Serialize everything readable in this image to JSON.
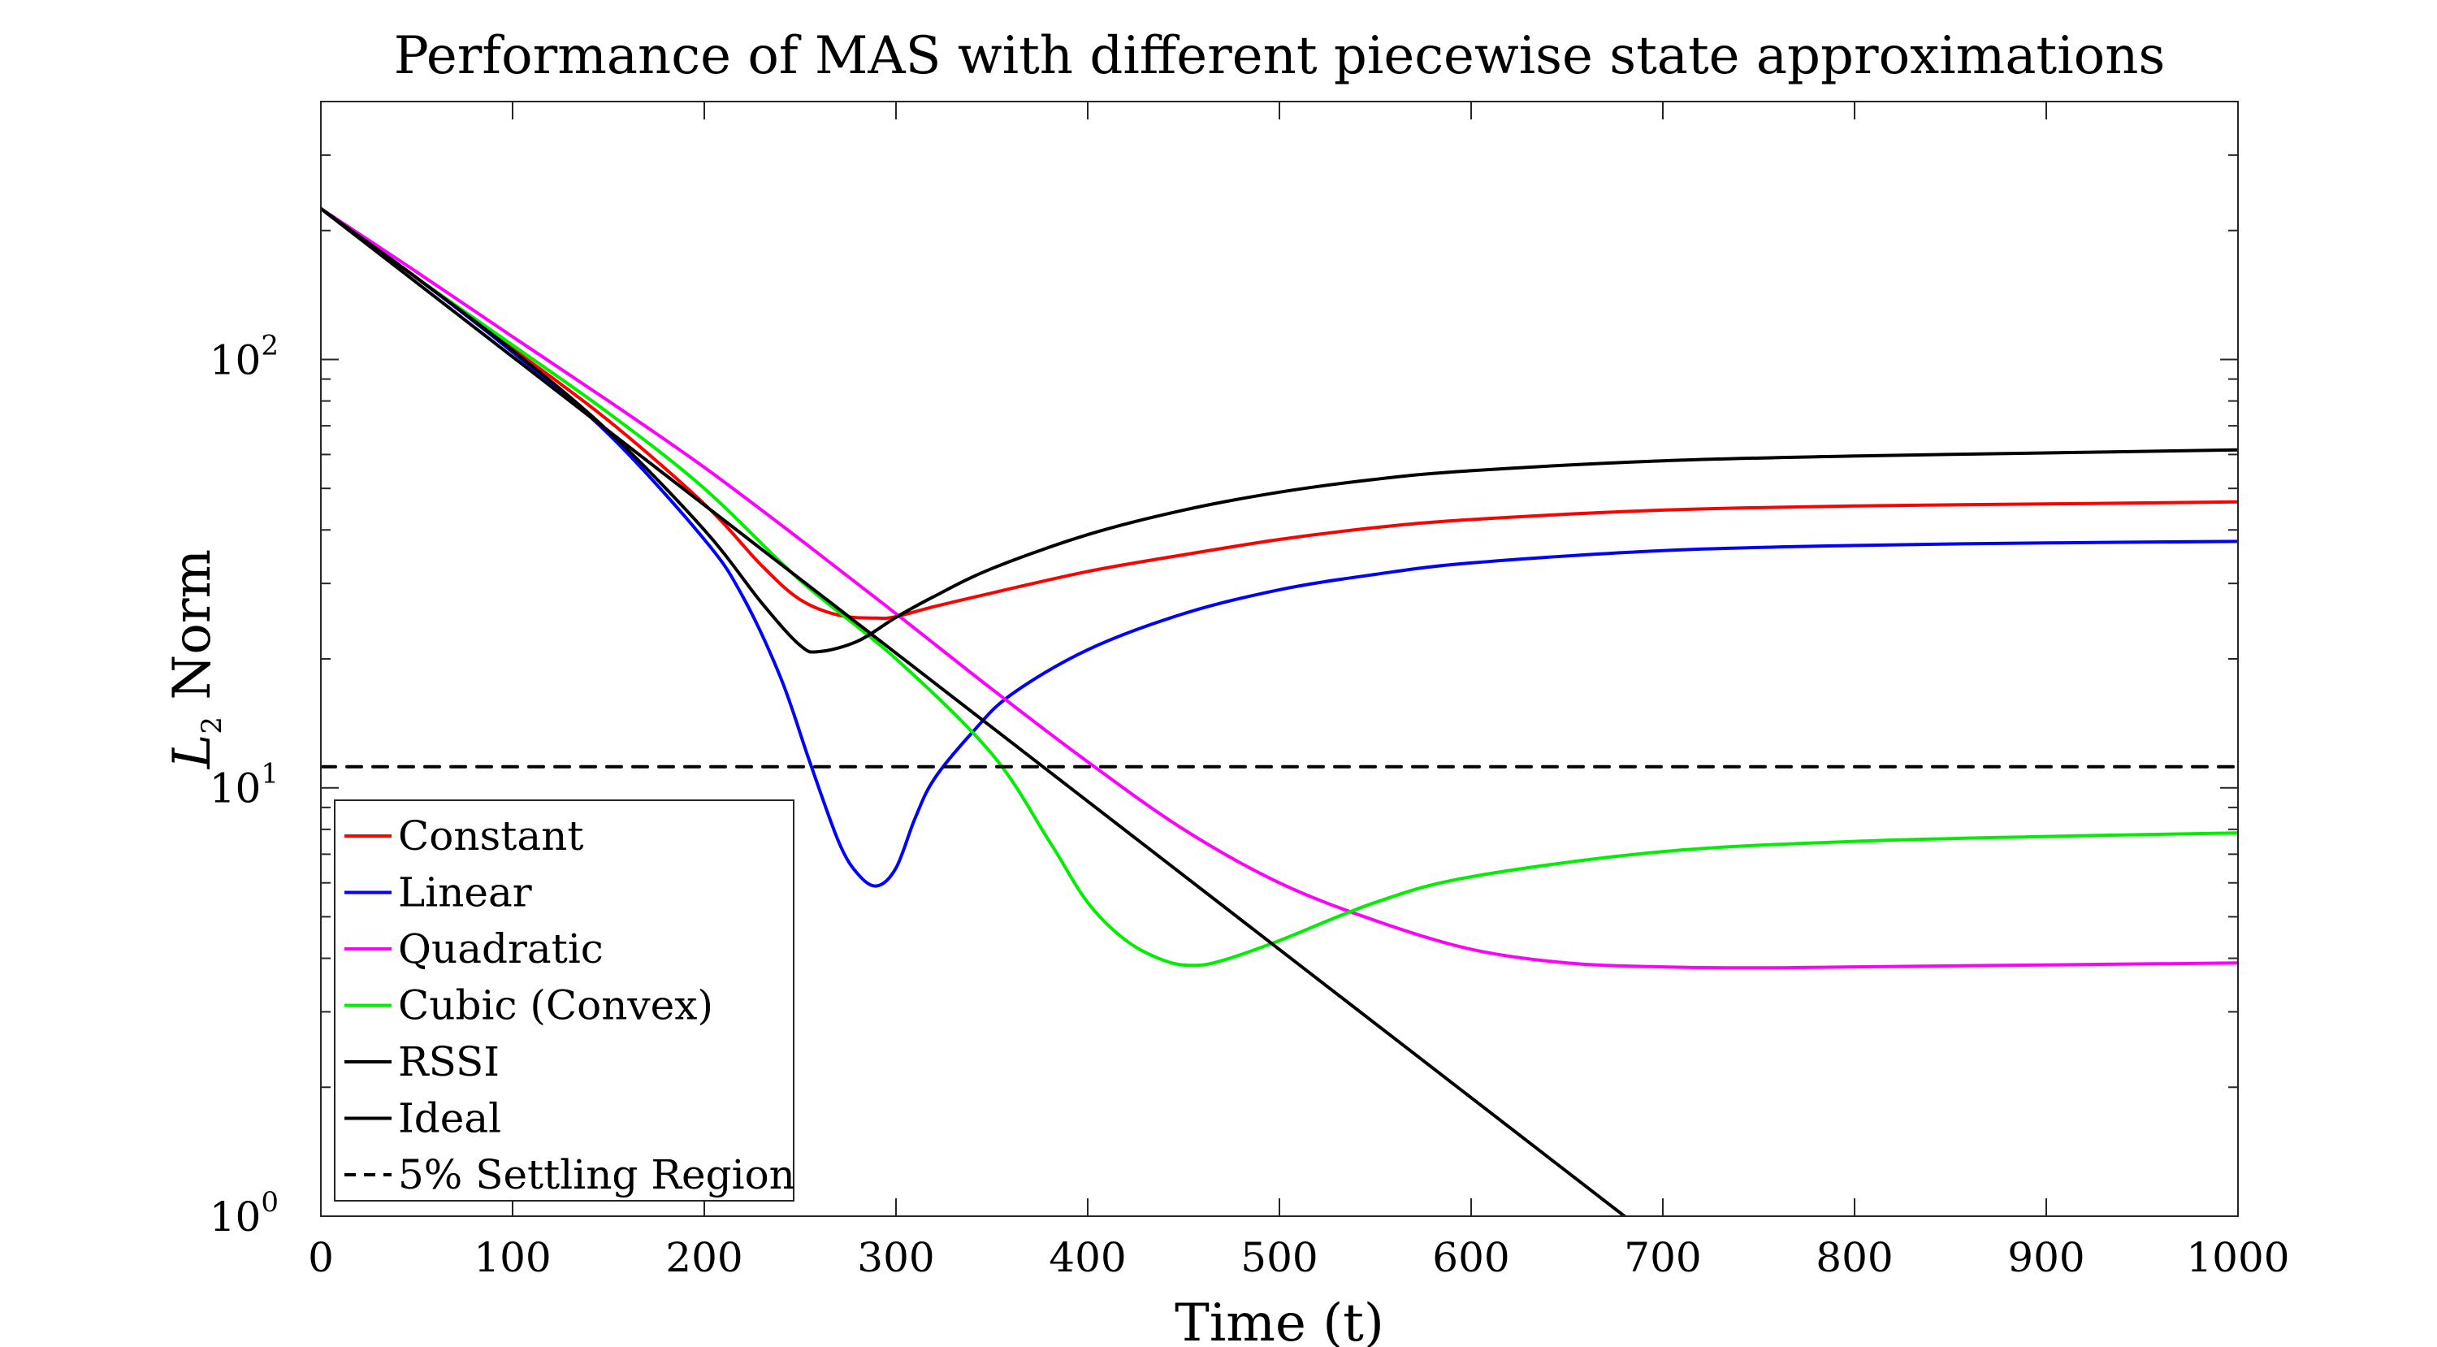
{
  "chart_data": {
    "type": "line",
    "title": "Performance of MAS with different piecewise state approximations",
    "xlabel": "Time (t)",
    "ylabel": "L",
    "ylabel_sub": "2",
    "ylabel_rest": " Norm",
    "xlim": [
      0,
      1000
    ],
    "ylim": [
      1,
      400
    ],
    "yscale": "log",
    "grid": false,
    "legend_position": "bottom-left",
    "x_ticks": [
      "0",
      "100",
      "200",
      "300",
      "400",
      "500",
      "600",
      "700",
      "800",
      "900",
      "1000"
    ],
    "y_ticks": [
      {
        "base": "10",
        "exp": "0"
      },
      {
        "base": "10",
        "exp": "1"
      },
      {
        "base": "10",
        "exp": "2"
      }
    ],
    "series": [
      {
        "name": "Constant",
        "color": "#ff0000",
        "style": "solid",
        "x": [
          0,
          50,
          100,
          150,
          200,
          230,
          250,
          270,
          290,
          300,
          320,
          350,
          400,
          450,
          500,
          550,
          600,
          700,
          800,
          900,
          1000
        ],
        "y": [
          225,
          155,
          106,
          72,
          46,
          33,
          27.5,
          25.3,
          24.9,
          25.1,
          26.5,
          28.5,
          32,
          35,
          38,
          40.5,
          42.3,
          44.5,
          45.5,
          46,
          46.5
        ]
      },
      {
        "name": "Linear",
        "color": "#0000ff",
        "style": "solid",
        "x": [
          0,
          50,
          100,
          150,
          200,
          220,
          240,
          255,
          270,
          280,
          290,
          300,
          310,
          320,
          340,
          360,
          400,
          450,
          500,
          550,
          600,
          700,
          800,
          900,
          1000
        ],
        "y": [
          225,
          155,
          104,
          67,
          38,
          28,
          18,
          11.5,
          7.5,
          6.3,
          5.9,
          6.5,
          8.5,
          10.5,
          13.5,
          16.5,
          21,
          25.5,
          29,
          31.5,
          33.5,
          35.8,
          36.8,
          37.3,
          37.6
        ]
      },
      {
        "name": "Quadratic",
        "color": "#ff00ff",
        "style": "solid",
        "x": [
          0,
          50,
          100,
          150,
          200,
          250,
          300,
          350,
          400,
          450,
          500,
          550,
          600,
          650,
          700,
          750,
          800,
          900,
          1000
        ],
        "y": [
          225,
          160,
          113,
          80,
          56,
          38,
          25.5,
          17,
          11.5,
          8,
          6,
          4.9,
          4.2,
          3.9,
          3.82,
          3.8,
          3.82,
          3.86,
          3.9
        ]
      },
      {
        "name": "Cubic (Convex)",
        "color": "#00ee00",
        "style": "solid",
        "x": [
          0,
          50,
          100,
          150,
          200,
          250,
          300,
          350,
          380,
          400,
          420,
          440,
          455,
          470,
          500,
          550,
          600,
          700,
          800,
          900,
          1000
        ],
        "y": [
          225,
          155,
          108,
          75,
          50,
          30.5,
          20,
          12,
          7.5,
          5.4,
          4.4,
          3.95,
          3.85,
          3.95,
          4.4,
          5.4,
          6.2,
          7.1,
          7.5,
          7.7,
          7.85
        ]
      },
      {
        "name": "RSSI",
        "color": "#000000",
        "style": "solid",
        "x": [
          0,
          50,
          100,
          150,
          200,
          230,
          250,
          260,
          280,
          300,
          320,
          350,
          400,
          450,
          500,
          550,
          600,
          700,
          800,
          900,
          1000
        ],
        "y": [
          225,
          155,
          105,
          68,
          40,
          27,
          21.5,
          20.8,
          22,
          25,
          28,
          32.5,
          39,
          44.5,
          49,
          52.5,
          55,
          58,
          59.5,
          60.5,
          61.5
        ]
      },
      {
        "name": "Ideal",
        "color": "#000000",
        "style": "solid",
        "x": [
          0,
          680
        ],
        "y": [
          225,
          1
        ]
      },
      {
        "name": "5% Settling Region",
        "color": "#000000",
        "style": "dashed",
        "x": [
          0,
          1000
        ],
        "y": [
          11.2,
          11.2
        ]
      }
    ]
  }
}
